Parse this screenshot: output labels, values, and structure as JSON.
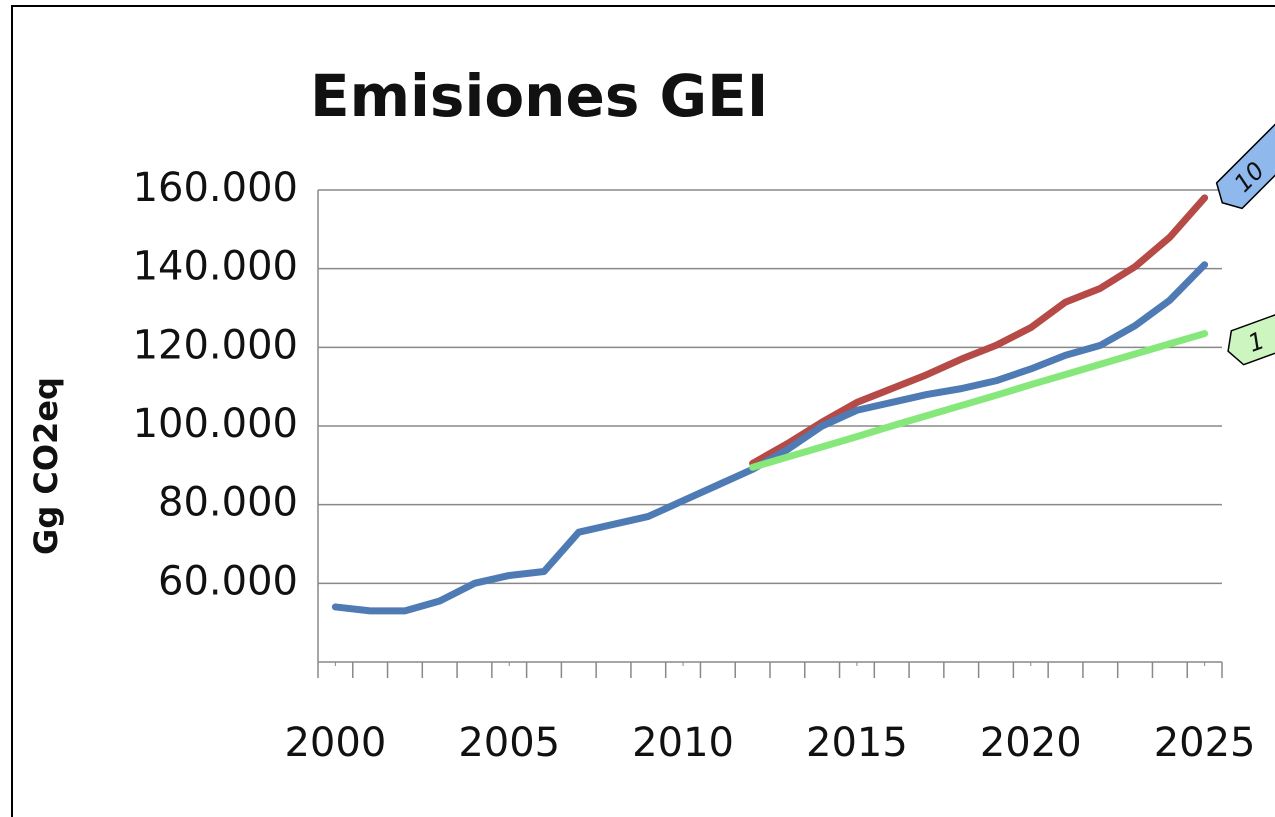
{
  "chart_data": {
    "type": "line",
    "title": "Emisiones GEI",
    "y_label": "Gg CO2eq",
    "x": [
      2000,
      2001,
      2002,
      2003,
      2004,
      2005,
      2006,
      2007,
      2008,
      2009,
      2010,
      2011,
      2012,
      2013,
      2014,
      2015,
      2016,
      2017,
      2018,
      2019,
      2020,
      2021,
      2022,
      2023,
      2024,
      2025
    ],
    "series": [
      {
        "color": "#b54a47",
        "values": [
          null,
          null,
          null,
          null,
          null,
          null,
          null,
          null,
          null,
          null,
          null,
          null,
          90500,
          95500,
          101000,
          106000,
          109500,
          113000,
          117000,
          120500,
          125000,
          131500,
          135000,
          140500,
          148000,
          158000
        ]
      },
      {
        "color": "#4f7bb5",
        "values": [
          54000,
          53000,
          53000,
          55500,
          60000,
          62000,
          63000,
          73000,
          75000,
          77000,
          81000,
          85000,
          89000,
          94000,
          100000,
          104000,
          106000,
          108000,
          109500,
          111500,
          114500,
          118000,
          120500,
          125500,
          132000,
          141000
        ]
      },
      {
        "color": "#86e87a",
        "values": [
          null,
          null,
          null,
          null,
          null,
          null,
          null,
          null,
          null,
          null,
          null,
          null,
          89500,
          92100,
          94700,
          97300,
          100000,
          102600,
          105200,
          107800,
          110500,
          113100,
          115700,
          118300,
          120900,
          123500
        ]
      }
    ],
    "xlim": [
      1999.5,
      2025.5
    ],
    "xticks": [
      2000,
      2005,
      2010,
      2015,
      2020,
      2025
    ],
    "ylim": [
      40000,
      160000
    ],
    "yticks": [
      {
        "value": 60000,
        "label": "60.000"
      },
      {
        "value": 80000,
        "label": "80.000"
      },
      {
        "value": 100000,
        "label": "100.000"
      },
      {
        "value": 120000,
        "label": "120.000"
      },
      {
        "value": 140000,
        "label": "140.000"
      },
      {
        "value": 160000,
        "label": "160.000"
      }
    ],
    "grid": true,
    "annotations": [
      {
        "text": "10",
        "color": "#8fb8ec"
      },
      {
        "text": "1",
        "color": "#ccf5c0"
      }
    ]
  }
}
